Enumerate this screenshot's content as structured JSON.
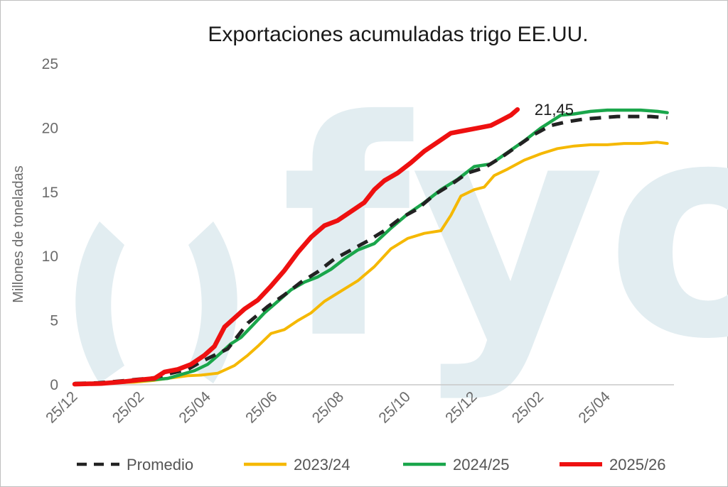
{
  "chart_data": {
    "type": "line",
    "title": "Exportaciones acumuladas trigo EE.UU.",
    "ylabel": "Millones de toneladas",
    "xlabel": "",
    "ylim": [
      0,
      25
    ],
    "yticks": [
      "0",
      "5",
      "10",
      "15",
      "20",
      "25"
    ],
    "xlim": [
      "25/12",
      "26/06"
    ],
    "xtick_labels": [
      "25/12",
      "25/02",
      "25/04",
      "25/06",
      "25/08",
      "25/10",
      "25/12",
      "25/02",
      "25/04"
    ],
    "xtick_months": [
      0,
      2,
      4,
      6,
      8,
      10,
      12,
      14,
      16
    ],
    "legend_position": "bottom",
    "grid": false,
    "watermark": "fyo",
    "annotation": {
      "text": "21,45",
      "series": "2025/26"
    },
    "series": [
      {
        "name": "Promedio",
        "color": "#222222",
        "style": "dashed",
        "x": [
          0,
          0.7,
          1.2,
          1.8,
          2.4,
          2.9,
          3.4,
          3.8,
          4.2,
          4.6,
          5.2,
          5.8,
          6.3,
          6.8,
          7.3,
          7.8,
          8.3,
          8.8,
          9.3,
          9.8,
          10.3,
          10.8,
          11.3,
          11.8,
          12.3,
          12.8,
          13.3,
          13.8,
          14.3,
          14.8,
          15.3,
          15.8,
          16.3,
          16.8,
          17.3,
          17.8
        ],
        "values": [
          0.1,
          0.15,
          0.25,
          0.4,
          0.55,
          0.9,
          1.2,
          1.8,
          2.3,
          2.8,
          4.8,
          6.1,
          7.0,
          8.0,
          8.8,
          9.8,
          10.5,
          11.2,
          12.0,
          13.0,
          13.7,
          14.8,
          15.6,
          16.5,
          16.9,
          17.7,
          18.6,
          19.5,
          20.2,
          20.5,
          20.7,
          20.8,
          20.9,
          20.9,
          20.9,
          20.8
        ]
      },
      {
        "name": "2023/24",
        "color": "#f5b800",
        "style": "solid",
        "x": [
          0,
          1.0,
          1.8,
          2.4,
          2.8,
          3.4,
          3.8,
          4.3,
          4.8,
          5.2,
          5.5,
          5.9,
          6.3,
          6.7,
          7.1,
          7.5,
          8.0,
          8.5,
          9.0,
          9.5,
          10.0,
          10.5,
          11.0,
          11.3,
          11.6,
          12.0,
          12.3,
          12.6,
          13.0,
          13.5,
          14.0,
          14.5,
          15.0,
          15.5,
          16.0,
          16.5,
          17.0,
          17.5,
          17.8
        ],
        "values": [
          0.1,
          0.15,
          0.2,
          0.35,
          0.5,
          0.7,
          0.75,
          0.9,
          1.5,
          2.3,
          3.0,
          4.0,
          4.3,
          5.0,
          5.6,
          6.5,
          7.3,
          8.1,
          9.2,
          10.6,
          11.4,
          11.8,
          12.0,
          13.2,
          14.7,
          15.2,
          15.4,
          16.3,
          16.8,
          17.5,
          18.0,
          18.4,
          18.6,
          18.7,
          18.7,
          18.8,
          18.8,
          18.9,
          18.8
        ]
      },
      {
        "name": "2024/25",
        "color": "#1aa64b",
        "style": "solid",
        "x": [
          0,
          1.0,
          1.8,
          2.4,
          2.8,
          3.2,
          3.6,
          4.0,
          4.4,
          4.7,
          5.0,
          5.3,
          5.7,
          6.1,
          6.5,
          6.9,
          7.3,
          7.7,
          8.1,
          8.5,
          9.0,
          9.5,
          10.0,
          10.5,
          11.0,
          11.5,
          12.0,
          12.5,
          13.0,
          13.5,
          14.0,
          14.3,
          14.6,
          15.0,
          15.5,
          16.0,
          16.5,
          17.0,
          17.5,
          17.8
        ],
        "values": [
          0.1,
          0.15,
          0.3,
          0.4,
          0.5,
          0.8,
          1.1,
          1.6,
          2.5,
          3.2,
          3.7,
          4.5,
          5.6,
          6.5,
          7.4,
          8.0,
          8.4,
          9.0,
          9.8,
          10.5,
          11.0,
          12.2,
          13.3,
          14.2,
          15.2,
          16.0,
          17.0,
          17.2,
          18.1,
          19.0,
          20.0,
          20.5,
          21.0,
          21.1,
          21.3,
          21.4,
          21.4,
          21.4,
          21.3,
          21.2
        ]
      },
      {
        "name": "2025/26",
        "color": "#ee1010",
        "style": "solid",
        "x": [
          0,
          0.8,
          1.5,
          2.0,
          2.4,
          2.7,
          3.1,
          3.5,
          3.9,
          4.2,
          4.5,
          4.8,
          5.1,
          5.5,
          5.9,
          6.3,
          6.7,
          7.1,
          7.5,
          7.9,
          8.3,
          8.7,
          9.0,
          9.3,
          9.7,
          10.1,
          10.5,
          10.9,
          11.3,
          11.7,
          12.1,
          12.5,
          12.8,
          13.1,
          13.3
        ],
        "values": [
          0.05,
          0.1,
          0.25,
          0.4,
          0.5,
          1.0,
          1.2,
          1.6,
          2.3,
          3.0,
          4.5,
          5.2,
          5.9,
          6.6,
          7.7,
          8.9,
          10.3,
          11.5,
          12.4,
          12.8,
          13.5,
          14.2,
          15.2,
          15.9,
          16.5,
          17.3,
          18.2,
          18.9,
          19.6,
          19.8,
          20.0,
          20.2,
          20.6,
          21.0,
          21.45
        ]
      }
    ]
  }
}
